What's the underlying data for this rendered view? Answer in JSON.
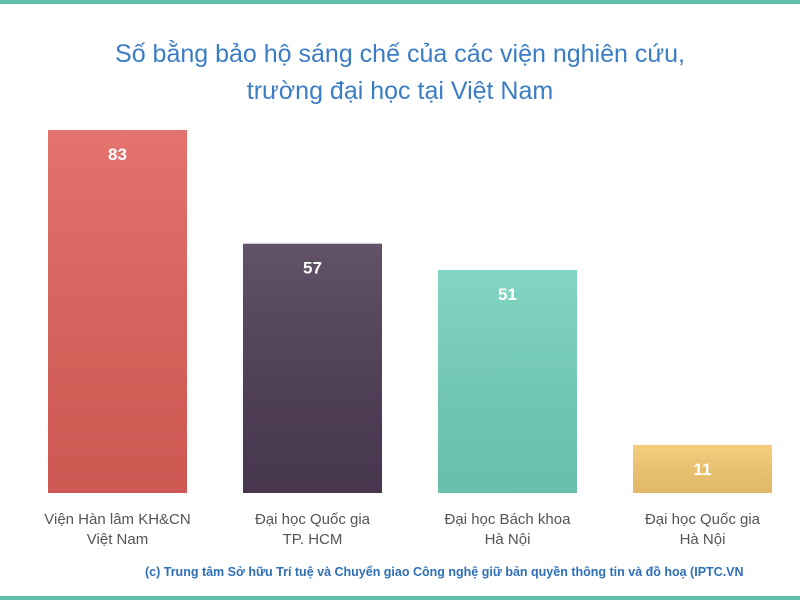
{
  "chart_data": {
    "type": "bar",
    "title": [
      "Số bằng bảo hộ sáng chế của các viện nghiên cứu,",
      "trường đại học tại Việt Nam"
    ],
    "categories": [
      [
        "Viện Hàn lâm KH&CN",
        "Việt Nam"
      ],
      [
        "Đại học Quốc gia",
        "TP. HCM"
      ],
      [
        "Đại học Bách khoa",
        "Hà Nội"
      ],
      [
        "Đại học Quốc gia",
        "Hà Nội"
      ]
    ],
    "values": [
      83,
      57,
      51,
      11
    ],
    "colors": [
      "#e0605a",
      "#4d3b54",
      "#72d0bb",
      "#f4c870"
    ],
    "credit": "(c) Trung tâm Sở hữu Trí tuệ và Chuyển giao Công nghệ giữ bản quyền thông tin và đồ hoạ (IPTC.VN"
  }
}
